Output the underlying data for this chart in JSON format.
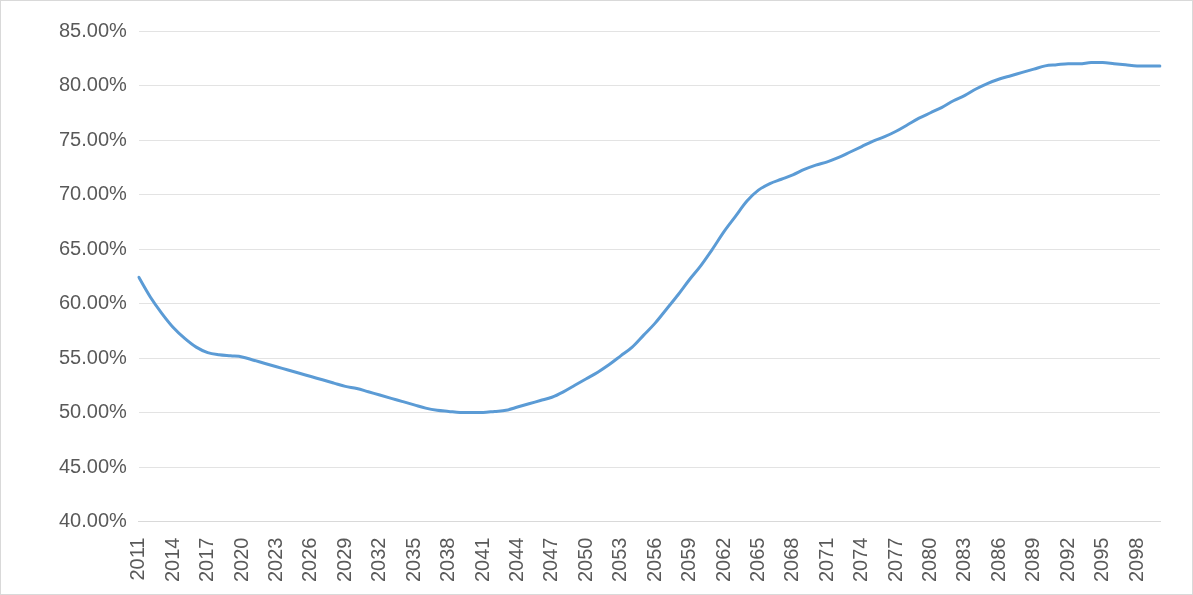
{
  "chart_data": {
    "type": "line",
    "color": "#5b9bd5",
    "marker": "none",
    "grid": "y",
    "legend": false,
    "categories": [
      "2011",
      null,
      null,
      "2014",
      null,
      null,
      "2017",
      null,
      null,
      "2020",
      null,
      null,
      "2023",
      null,
      null,
      "2026",
      null,
      null,
      "2029",
      null,
      null,
      "2032",
      null,
      null,
      "2035",
      null,
      null,
      "2038",
      null,
      null,
      "2041",
      null,
      null,
      "2044",
      null,
      null,
      "2047",
      null,
      null,
      "2050",
      null,
      null,
      "2053",
      null,
      null,
      "2056",
      null,
      null,
      "2059",
      null,
      null,
      "2062",
      null,
      null,
      "2065",
      null,
      null,
      "2068",
      null,
      null,
      "2071",
      null,
      null,
      "2074",
      null,
      null,
      "2077",
      null,
      null,
      "2080",
      null,
      null,
      "2083",
      null,
      null,
      "2086",
      null,
      null,
      "2089",
      null,
      null,
      "2092",
      null,
      null,
      "2095",
      null,
      null,
      "2098",
      null,
      null
    ],
    "values": [
      62.4,
      60.6,
      59.1,
      57.8,
      56.8,
      56.0,
      55.5,
      55.3,
      55.2,
      55.1,
      54.8,
      54.5,
      54.2,
      53.9,
      53.6,
      53.3,
      53.0,
      52.7,
      52.4,
      52.2,
      51.9,
      51.6,
      51.3,
      51.0,
      50.7,
      50.4,
      50.2,
      50.1,
      50.0,
      50.0,
      50.0,
      50.1,
      50.2,
      50.5,
      50.8,
      51.1,
      51.4,
      51.9,
      52.5,
      53.1,
      53.7,
      54.4,
      55.2,
      56.0,
      57.1,
      58.2,
      59.5,
      60.8,
      62.2,
      63.5,
      65.0,
      66.6,
      68.0,
      69.4,
      70.4,
      71.0,
      71.4,
      71.8,
      72.3,
      72.7,
      73.0,
      73.4,
      73.9,
      74.4,
      74.9,
      75.3,
      75.8,
      76.4,
      77.0,
      77.5,
      78.0,
      78.6,
      79.1,
      79.7,
      80.2,
      80.6,
      80.9,
      81.2,
      81.5,
      81.8,
      81.9,
      82.0,
      82.0,
      82.1,
      82.1,
      82.0,
      81.9,
      81.8,
      81.8,
      81.8
    ],
    "ylim": [
      40,
      85
    ],
    "yticks": [
      {
        "value": 40,
        "label": "40.00%"
      },
      {
        "value": 45,
        "label": "45.00%"
      },
      {
        "value": 50,
        "label": "50.00%"
      },
      {
        "value": 55,
        "label": "55.00%"
      },
      {
        "value": 60,
        "label": "60.00%"
      },
      {
        "value": 65,
        "label": "65.00%"
      },
      {
        "value": 70,
        "label": "70.00%"
      },
      {
        "value": 75,
        "label": "75.00%"
      },
      {
        "value": 80,
        "label": "80.00%"
      },
      {
        "value": 85,
        "label": "85.00%"
      }
    ]
  }
}
